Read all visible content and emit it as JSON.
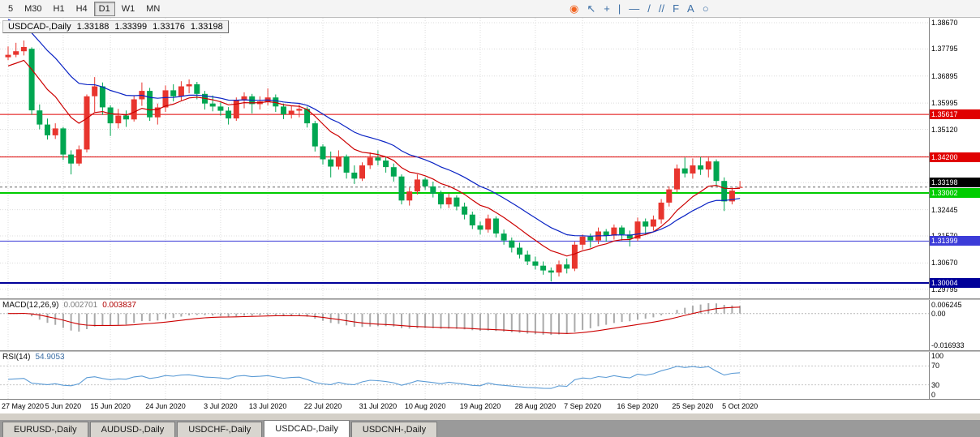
{
  "toolbar": {
    "timeframes": [
      {
        "label": "5",
        "active": false
      },
      {
        "label": "M30",
        "active": false
      },
      {
        "label": "H1",
        "active": false
      },
      {
        "label": "H4",
        "active": false
      },
      {
        "label": "D1",
        "active": true
      },
      {
        "label": "W1",
        "active": false
      },
      {
        "label": "MN",
        "active": false
      }
    ],
    "tools": [
      {
        "name": "app-logo-icon",
        "glyph": "◉",
        "color": "#f26522"
      },
      {
        "name": "cursor-icon",
        "glyph": "↖",
        "color": "#3b6ea5"
      },
      {
        "name": "crosshair-icon",
        "glyph": "+",
        "color": "#3b6ea5"
      },
      {
        "name": "vertical-line-icon",
        "glyph": "|",
        "color": "#3b6ea5"
      },
      {
        "name": "horizontal-line-icon",
        "glyph": "—",
        "color": "#3b6ea5"
      },
      {
        "name": "trendline-icon",
        "glyph": "/",
        "color": "#3b6ea5"
      },
      {
        "name": "channel-icon",
        "glyph": "//",
        "color": "#3b6ea5"
      },
      {
        "name": "fibonacci-icon",
        "glyph": "F",
        "color": "#3b6ea5"
      },
      {
        "name": "text-icon",
        "glyph": "A",
        "color": "#3b6ea5"
      },
      {
        "name": "shapes-icon",
        "glyph": "○",
        "color": "#3b6ea5"
      }
    ]
  },
  "colors": {
    "bull": "#e8352e",
    "bear": "#00a651",
    "grid": "#dcdcdc",
    "macd_hist": "#aaaaaa",
    "macd_signal": "#cc0000",
    "rsi_line": "#5b9bd5",
    "level_line": "#c8c8c8"
  },
  "chart_data": {
    "type": "candlestick",
    "symbol": "USDCAD",
    "timeframe": "Daily",
    "header": {
      "symbol": "USDCAD-,Daily",
      "open": "1.33188",
      "high": "1.33399",
      "low": "1.33176",
      "close": "1.33198"
    },
    "y_axis": {
      "top_price": 1.38832,
      "bottom_price": 1.29492,
      "labels": [
        1.3867,
        1.37795,
        1.36895,
        1.35995,
        1.3512,
        1.3422,
        1.33345,
        1.32445,
        1.3157,
        1.3067,
        1.29795
      ]
    },
    "horizontal_lines": [
      {
        "value": 1.35617,
        "color": "#e00000",
        "width": 1
      },
      {
        "value": 1.342,
        "color": "#e00000",
        "width": 1
      },
      {
        "value": 1.33002,
        "color": "#00cc00",
        "width": 2
      },
      {
        "value": 1.31399,
        "color": "#3c3cd8",
        "width": 1
      },
      {
        "value": 1.30004,
        "color": "#000099",
        "width": 2
      }
    ],
    "last_price": 1.33198,
    "overlays": [
      {
        "name": "ma-fast",
        "period": 10,
        "seed": 1.3715,
        "color": "#cc0000"
      },
      {
        "name": "ma-slow",
        "period": 20,
        "seed": 1.389,
        "color": "#0a23c4"
      }
    ],
    "x_labels": [
      {
        "text": "27 May 2020",
        "i": 0
      },
      {
        "text": "5 Jun 2020",
        "i": 7
      },
      {
        "text": "15 Jun 2020",
        "i": 13
      },
      {
        "text": "24 Jun 2020",
        "i": 20
      },
      {
        "text": "3 Jul 2020",
        "i": 27
      },
      {
        "text": "13 Jul 2020",
        "i": 33
      },
      {
        "text": "22 Jul 2020",
        "i": 40
      },
      {
        "text": "31 Jul 2020",
        "i": 47
      },
      {
        "text": "10 Aug 2020",
        "i": 53
      },
      {
        "text": "19 Aug 2020",
        "i": 60
      },
      {
        "text": "28 Aug 2020",
        "i": 67
      },
      {
        "text": "7 Sep 2020",
        "i": 73
      },
      {
        "text": "16 Sep 2020",
        "i": 80
      },
      {
        "text": "25 Sep 2020",
        "i": 87
      },
      {
        "text": "5 Oct 2020",
        "i": 93
      }
    ],
    "open": [
      1.3752,
      1.376,
      1.3772,
      1.378,
      1.3575,
      1.3528,
      1.3492,
      1.3515,
      1.3428,
      1.3398,
      1.3445,
      1.3622,
      1.3655,
      1.3585,
      1.3532,
      1.3558,
      1.3545,
      1.3612,
      1.364,
      1.3552,
      1.3585,
      1.3642,
      1.3622,
      1.3655,
      1.3662,
      1.363,
      1.3598,
      1.3588,
      1.3574,
      1.3548,
      1.3608,
      1.3622,
      1.3596,
      1.3605,
      1.3618,
      1.3588,
      1.3562,
      1.3574,
      1.358,
      1.3532,
      1.3455,
      1.3412,
      1.3388,
      1.3422,
      1.3368,
      1.3348,
      1.3392,
      1.3418,
      1.3408,
      1.3386,
      1.3355,
      1.3275,
      1.3305,
      1.3345,
      1.3322,
      1.3298,
      1.3262,
      1.3285,
      1.3255,
      1.3228,
      1.3192,
      1.3178,
      1.3215,
      1.3165,
      1.3142,
      1.3118,
      1.3095,
      1.3072,
      1.3058,
      1.3042,
      1.3035,
      1.3062,
      1.3048,
      1.3128,
      1.3155,
      1.3142,
      1.3172,
      1.3158,
      1.3185,
      1.3162,
      1.3148,
      1.3205,
      1.3188,
      1.3212,
      1.3268,
      1.3312,
      1.3382,
      1.3365,
      1.3392,
      1.3378,
      1.3405,
      1.334,
      1.3272,
      1.33188
    ],
    "high": [
      1.3788,
      1.38,
      1.3808,
      1.3785,
      1.3595,
      1.3548,
      1.3532,
      1.352,
      1.3442,
      1.3458,
      1.3628,
      1.3686,
      1.3668,
      1.3592,
      1.358,
      1.3575,
      1.3625,
      1.3668,
      1.365,
      1.3598,
      1.3658,
      1.3662,
      1.3672,
      1.3678,
      1.367,
      1.364,
      1.3625,
      1.3602,
      1.3586,
      1.3618,
      1.3635,
      1.363,
      1.3622,
      1.3648,
      1.3628,
      1.3598,
      1.359,
      1.3595,
      1.3588,
      1.354,
      1.3462,
      1.3438,
      1.3442,
      1.3428,
      1.3392,
      1.3402,
      1.3435,
      1.3442,
      1.342,
      1.3398,
      1.3362,
      1.3318,
      1.3362,
      1.3352,
      1.3338,
      1.3308,
      1.3298,
      1.3292,
      1.3268,
      1.3238,
      1.3205,
      1.3228,
      1.3222,
      1.3178,
      1.3152,
      1.3135,
      1.3108,
      1.3088,
      1.3072,
      1.3052,
      1.3075,
      1.3082,
      1.3138,
      1.3162,
      1.3165,
      1.3185,
      1.318,
      1.3195,
      1.3192,
      1.3175,
      1.3218,
      1.3215,
      1.3225,
      1.328,
      1.3322,
      1.3395,
      1.3418,
      1.3415,
      1.342,
      1.3418,
      1.3412,
      1.3352,
      1.3318,
      1.33399
    ],
    "low": [
      1.3742,
      1.3752,
      1.3758,
      1.356,
      1.3512,
      1.3478,
      1.348,
      1.341,
      1.3362,
      1.339,
      1.3435,
      1.357,
      1.356,
      1.349,
      1.3515,
      1.352,
      1.3538,
      1.359,
      1.354,
      1.3528,
      1.357,
      1.3605,
      1.3608,
      1.3632,
      1.3612,
      1.3578,
      1.3572,
      1.3558,
      1.3528,
      1.354,
      1.3582,
      1.3565,
      1.3578,
      1.3592,
      1.357,
      1.3546,
      1.3548,
      1.3552,
      1.3518,
      1.3438,
      1.3395,
      1.3352,
      1.3378,
      1.3348,
      1.333,
      1.334,
      1.338,
      1.3392,
      1.3368,
      1.3338,
      1.3262,
      1.3258,
      1.3295,
      1.331,
      1.3285,
      1.3248,
      1.325,
      1.3242,
      1.3212,
      1.318,
      1.3162,
      1.3168,
      1.3152,
      1.3128,
      1.3102,
      1.3082,
      1.306,
      1.3045,
      1.3028,
      1.3005,
      1.3022,
      1.3032,
      1.304,
      1.3112,
      1.3118,
      1.313,
      1.3138,
      1.3145,
      1.3142,
      1.3122,
      1.314,
      1.3162,
      1.3175,
      1.3198,
      1.3255,
      1.3302,
      1.3352,
      1.3348,
      1.336,
      1.3352,
      1.3322,
      1.324,
      1.3262,
      1.33176
    ],
    "close": [
      1.376,
      1.3772,
      1.3786,
      1.3575,
      1.3528,
      1.3492,
      1.3515,
      1.3428,
      1.3398,
      1.3445,
      1.3622,
      1.3655,
      1.3585,
      1.3532,
      1.3558,
      1.3545,
      1.3612,
      1.364,
      1.3552,
      1.3585,
      1.3642,
      1.3622,
      1.3655,
      1.3662,
      1.363,
      1.3598,
      1.3588,
      1.3574,
      1.3548,
      1.3608,
      1.3622,
      1.3596,
      1.3605,
      1.3618,
      1.3588,
      1.3562,
      1.3574,
      1.358,
      1.3532,
      1.3455,
      1.3412,
      1.3388,
      1.3422,
      1.3368,
      1.3348,
      1.3392,
      1.3418,
      1.3408,
      1.3386,
      1.3355,
      1.3275,
      1.3305,
      1.3345,
      1.3322,
      1.3298,
      1.3262,
      1.3285,
      1.3255,
      1.3228,
      1.3192,
      1.3178,
      1.3215,
      1.3165,
      1.3142,
      1.3118,
      1.3095,
      1.3072,
      1.3058,
      1.3042,
      1.3035,
      1.3062,
      1.3048,
      1.3128,
      1.3155,
      1.3142,
      1.3172,
      1.3158,
      1.3185,
      1.3162,
      1.3148,
      1.3205,
      1.3188,
      1.3212,
      1.3268,
      1.3312,
      1.3382,
      1.3365,
      1.3392,
      1.3378,
      1.3405,
      1.334,
      1.3272,
      1.3308,
      1.33198
    ],
    "macd": {
      "label": "MACD(12,26,9)",
      "value_main": "0.002701",
      "value_signal": "0.003837",
      "params": [
        12,
        26,
        9
      ],
      "axis_max_label": "0.006245",
      "axis_zero_label": "0.00",
      "axis_min_label": "-0.016933",
      "scale_max": 0.006245,
      "scale_min": -0.016933
    },
    "rsi": {
      "label": "RSI(14)",
      "value": "54.9053",
      "period": 14,
      "levels": [
        70,
        30
      ],
      "axis_labels": [
        "100",
        "70",
        "30",
        "0"
      ]
    }
  },
  "tabs": [
    {
      "label": "EURUSD-,Daily",
      "active": false
    },
    {
      "label": "AUDUSD-,Daily",
      "active": false
    },
    {
      "label": "USDCHF-,Daily",
      "active": false
    },
    {
      "label": "USDCAD-,Daily",
      "active": true
    },
    {
      "label": "USDCNH-,Daily",
      "active": false
    }
  ]
}
